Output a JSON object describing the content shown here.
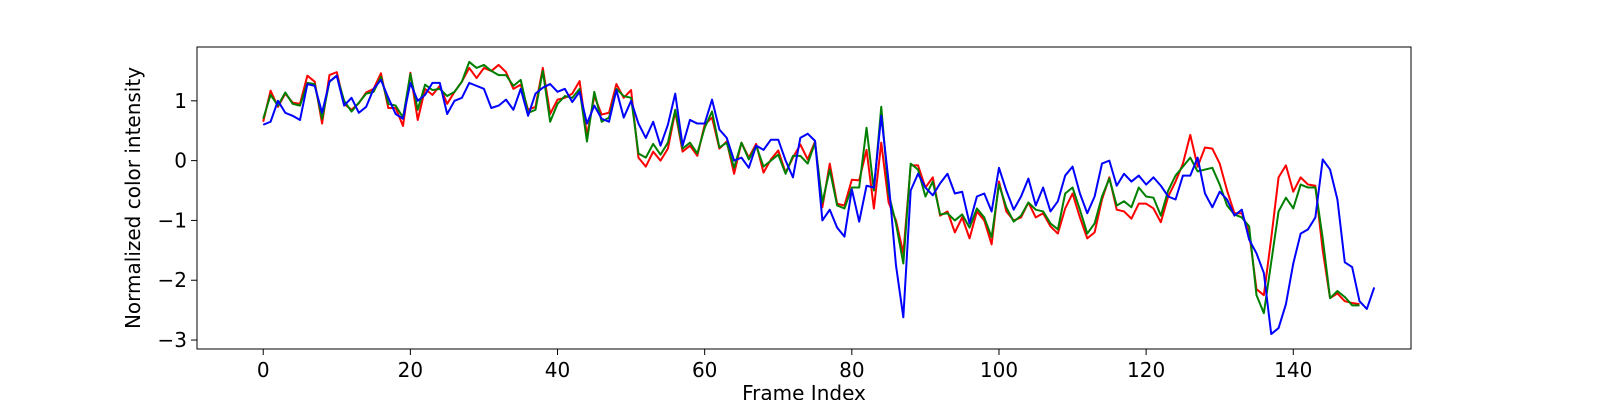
{
  "chart_data": {
    "type": "line",
    "title": "",
    "xlabel": "Frame Index",
    "ylabel": "Normalized color intensity",
    "xlim": [
      -9,
      156
    ],
    "ylim": [
      -3.15,
      1.9
    ],
    "xticks": [
      0,
      20,
      40,
      60,
      80,
      100,
      120,
      140
    ],
    "yticks": [
      -3,
      -2,
      -1,
      0,
      1
    ],
    "grid": false,
    "legend": "none",
    "series": [
      {
        "color": "#ff0000",
        "values": [
          0.65,
          1.17,
          0.9,
          1.12,
          0.97,
          0.95,
          1.42,
          1.32,
          0.62,
          1.43,
          1.48,
          0.95,
          0.85,
          0.96,
          1.14,
          1.2,
          1.46,
          0.88,
          0.88,
          0.58,
          1.47,
          0.68,
          1.2,
          1.1,
          1.25,
          0.95,
          1.15,
          1.32,
          1.55,
          1.38,
          1.55,
          1.5,
          1.6,
          1.48,
          1.2,
          1.27,
          0.85,
          0.9,
          1.55,
          0.78,
          1.02,
          1.05,
          1.12,
          1.33,
          0.42,
          1.08,
          0.77,
          0.8,
          1.28,
          1.05,
          1.18,
          0.05,
          -0.1,
          0.15,
          0.0,
          0.2,
          0.82,
          0.15,
          0.25,
          0.08,
          0.6,
          0.72,
          0.2,
          0.32,
          -0.22,
          0.3,
          0.05,
          0.28,
          -0.2,
          0.02,
          0.17,
          -0.2,
          0.05,
          0.27,
          0.02,
          0.32,
          -0.78,
          -0.05,
          -0.72,
          -0.75,
          -0.32,
          -0.33,
          0.18,
          -0.8,
          0.3,
          -0.7,
          -1.0,
          -1.55,
          -0.08,
          -0.08,
          -0.45,
          -0.28,
          -0.92,
          -0.85,
          -1.2,
          -0.95,
          -1.3,
          -0.85,
          -1.0,
          -1.4,
          -0.35,
          -0.85,
          -1.0,
          -0.95,
          -0.7,
          -0.95,
          -0.88,
          -1.1,
          -1.22,
          -0.8,
          -0.55,
          -0.95,
          -1.3,
          -1.2,
          -0.65,
          -0.28,
          -0.82,
          -0.85,
          -0.97,
          -0.72,
          -0.72,
          -0.8,
          -1.03,
          -0.6,
          -0.35,
          -0.05,
          0.43,
          -0.1,
          0.22,
          0.2,
          -0.05,
          -0.5,
          -0.88,
          -0.88,
          -1.2,
          -2.15,
          -2.25,
          -1.3,
          -0.28,
          -0.08,
          -0.52,
          -0.28,
          -0.4,
          -0.42,
          -1.5,
          -2.3,
          -2.22,
          -2.35,
          -2.38,
          -2.4
        ]
      },
      {
        "color": "#008000",
        "values": [
          0.7,
          1.1,
          0.92,
          1.14,
          0.95,
          0.92,
          1.3,
          1.28,
          0.7,
          1.32,
          1.42,
          1.0,
          0.82,
          0.97,
          1.12,
          1.15,
          1.4,
          0.95,
          0.92,
          0.72,
          1.45,
          0.85,
          1.27,
          1.18,
          1.2,
          1.08,
          1.15,
          1.32,
          1.65,
          1.55,
          1.6,
          1.5,
          1.43,
          1.43,
          1.25,
          1.35,
          0.8,
          0.85,
          1.5,
          0.65,
          0.95,
          1.08,
          1.05,
          1.2,
          0.32,
          1.15,
          0.65,
          0.72,
          1.2,
          1.08,
          1.05,
          0.12,
          0.05,
          0.28,
          0.1,
          0.3,
          0.85,
          0.2,
          0.3,
          0.12,
          0.55,
          0.82,
          0.22,
          0.3,
          -0.12,
          0.3,
          0.02,
          0.25,
          -0.1,
          0.0,
          0.1,
          -0.22,
          0.08,
          0.08,
          -0.05,
          0.3,
          -0.7,
          -0.15,
          -0.75,
          -0.8,
          -0.45,
          -0.45,
          0.55,
          -0.5,
          0.9,
          -0.55,
          -1.05,
          -1.72,
          -0.05,
          -0.15,
          -0.6,
          -0.35,
          -0.9,
          -0.88,
          -1.0,
          -0.9,
          -1.12,
          -0.8,
          -0.95,
          -1.28,
          -0.4,
          -0.78,
          -1.02,
          -0.92,
          -0.7,
          -0.82,
          -0.85,
          -1.05,
          -1.15,
          -0.55,
          -0.45,
          -0.82,
          -1.22,
          -1.05,
          -0.6,
          -0.3,
          -0.75,
          -0.68,
          -0.78,
          -0.45,
          -0.6,
          -0.62,
          -0.92,
          -0.5,
          -0.25,
          -0.1,
          0.05,
          -0.18,
          -0.15,
          -0.12,
          -0.4,
          -0.75,
          -0.9,
          -0.95,
          -1.1,
          -2.25,
          -2.55,
          -1.7,
          -0.85,
          -0.62,
          -0.8,
          -0.4,
          -0.45,
          -0.45,
          -1.3,
          -2.3,
          -2.18,
          -2.28,
          -2.42,
          -2.42
        ]
      },
      {
        "color": "#0000ff",
        "values": [
          0.6,
          0.65,
          1.0,
          0.8,
          0.75,
          0.68,
          1.28,
          1.25,
          0.8,
          1.32,
          1.42,
          0.92,
          1.05,
          0.8,
          0.9,
          1.2,
          1.35,
          1.05,
          0.78,
          0.7,
          1.3,
          1.0,
          1.1,
          1.3,
          1.3,
          0.78,
          1.0,
          1.05,
          1.3,
          1.25,
          1.2,
          0.88,
          0.92,
          1.02,
          0.85,
          1.2,
          0.75,
          1.12,
          1.22,
          1.28,
          1.15,
          1.2,
          0.98,
          1.15,
          0.62,
          0.92,
          0.7,
          0.65,
          1.18,
          0.72,
          1.0,
          0.62,
          0.38,
          0.65,
          0.25,
          0.6,
          1.12,
          0.25,
          0.68,
          0.62,
          0.62,
          1.02,
          0.52,
          0.38,
          0.0,
          0.05,
          -0.12,
          0.25,
          0.18,
          0.35,
          0.35,
          0.0,
          -0.28,
          0.38,
          0.45,
          0.33,
          -1.0,
          -0.82,
          -1.12,
          -1.27,
          -0.48,
          -1.02,
          -0.42,
          -0.45,
          0.75,
          -0.35,
          -1.75,
          -2.62,
          -0.5,
          -0.22,
          -0.45,
          -0.58,
          -0.38,
          -0.22,
          -0.55,
          -0.52,
          -1.05,
          -0.6,
          -0.55,
          -0.85,
          -0.12,
          -0.5,
          -0.82,
          -0.6,
          -0.3,
          -0.75,
          -0.45,
          -0.85,
          -0.68,
          -0.25,
          -0.1,
          -0.55,
          -0.88,
          -0.6,
          -0.05,
          0.0,
          -0.42,
          -0.22,
          -0.35,
          -0.25,
          -0.4,
          -0.28,
          -0.42,
          -0.6,
          -0.65,
          -0.25,
          -0.25,
          0.05,
          -0.55,
          -0.78,
          -0.52,
          -0.65,
          -0.92,
          -0.82,
          -1.32,
          -1.55,
          -1.88,
          -2.9,
          -2.8,
          -2.4,
          -1.72,
          -1.22,
          -1.15,
          -0.95,
          0.02,
          -0.15,
          -0.65,
          -1.7,
          -1.78,
          -2.35,
          -2.48,
          -2.12
        ]
      }
    ]
  }
}
